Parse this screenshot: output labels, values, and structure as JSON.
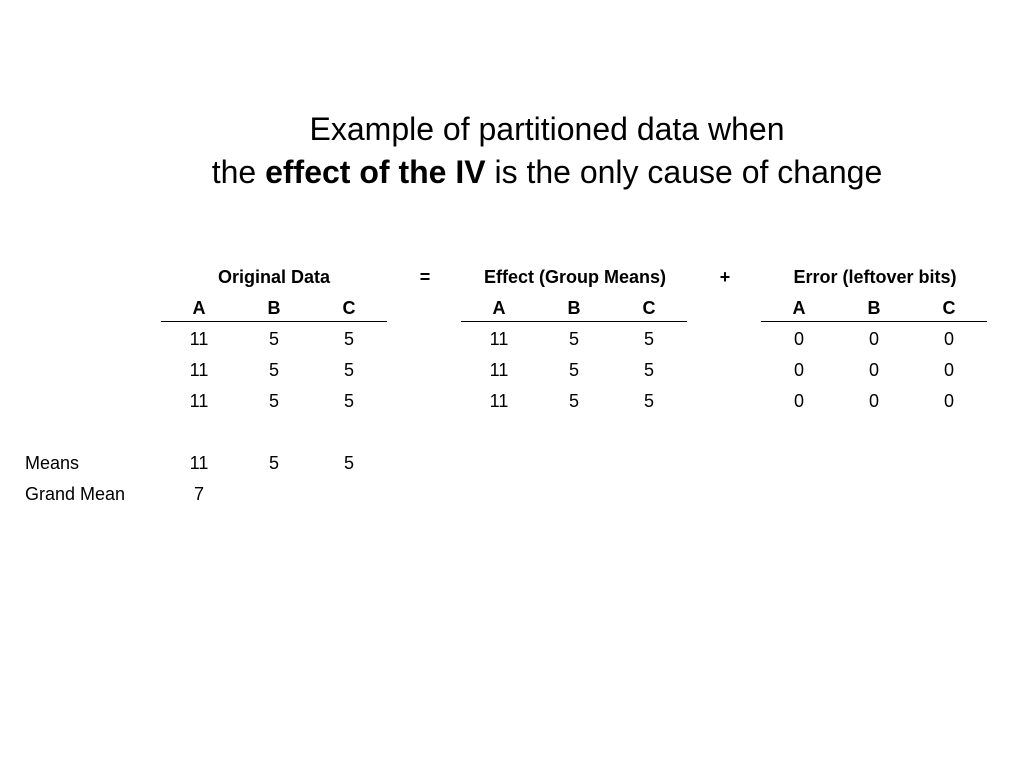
{
  "title": {
    "line1": "Example of partitioned data when",
    "line2_pre": "the ",
    "line2_bold": "effect of the IV",
    "line2_post": " is the only cause of change"
  },
  "tables": [
    {
      "id": "original",
      "heading": "Original Data",
      "columns": [
        "A",
        "B",
        "C"
      ],
      "rows": [
        [
          "11",
          "5",
          "5"
        ],
        [
          "11",
          "5",
          "5"
        ],
        [
          "11",
          "5",
          "5"
        ]
      ]
    },
    {
      "id": "effect",
      "heading": "Effect (Group Means)",
      "columns": [
        "A",
        "B",
        "C"
      ],
      "rows": [
        [
          "11",
          "5",
          "5"
        ],
        [
          "11",
          "5",
          "5"
        ],
        [
          "11",
          "5",
          "5"
        ]
      ]
    },
    {
      "id": "error",
      "heading": "Error (leftover bits)",
      "columns": [
        "A",
        "B",
        "C"
      ],
      "rows": [
        [
          "0",
          "0",
          "0"
        ],
        [
          "0",
          "0",
          "0"
        ],
        [
          "0",
          "0",
          "0"
        ]
      ]
    }
  ],
  "operators": {
    "equals": "=",
    "plus": "+"
  },
  "summary": {
    "means_label": "Means",
    "means": [
      "11",
      "5",
      "5"
    ],
    "grand_mean_label": "Grand Mean",
    "grand_mean": "7"
  }
}
